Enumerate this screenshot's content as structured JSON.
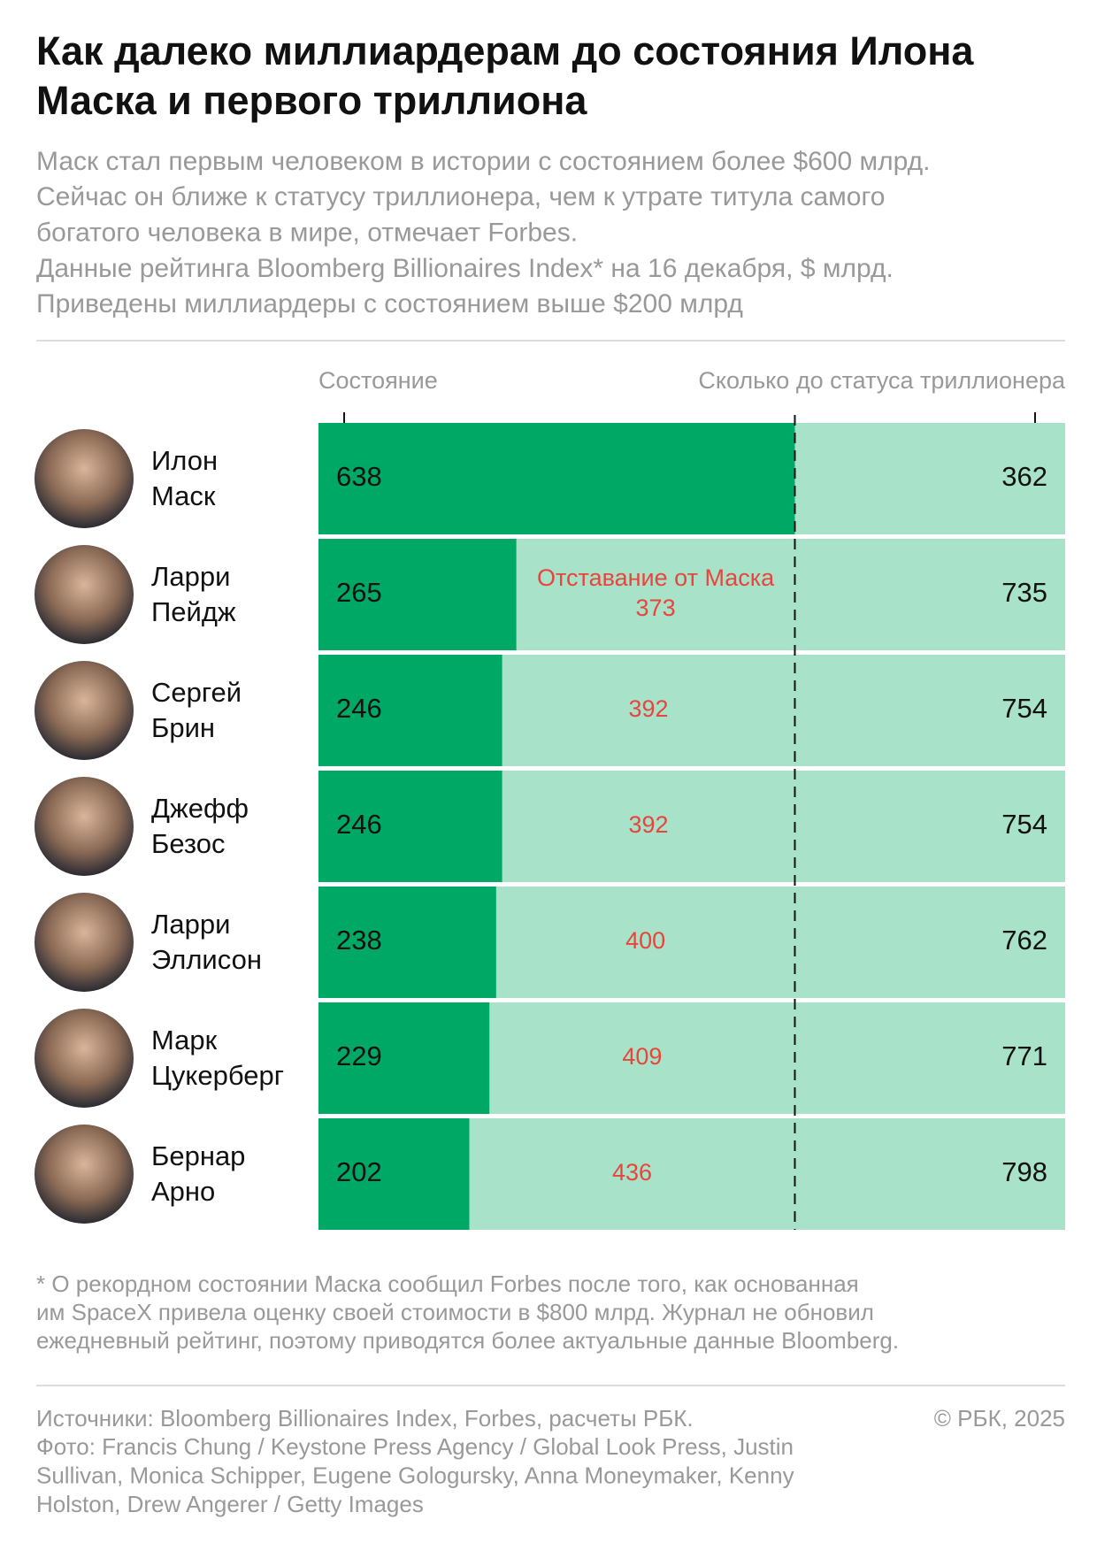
{
  "chart_data": {
    "type": "bar",
    "title": [
      "Как далеко миллиардерам до состояния Илона",
      "Маска и первого триллиона"
    ],
    "subtitle": [
      "Маск стал первым человеком в истории с состоянием более $600 млрд.",
      "Сейчас он ближе к статусу триллионера, чем к утрате титула самого",
      "богатого человека в мире, отмечает Forbes.",
      "Данные рейтинга Bloomberg Billionaires Index* на 16 декабря, $ млрд.",
      "Приведены миллиардеры с состоянием выше $200 млрд"
    ],
    "categories": [
      "Илон Маск",
      "Ларри Пейдж",
      "Сергей Брин",
      "Джефф Безос",
      "Ларри Эллисон",
      "Марк Цукерберг",
      "Бернар Арно"
    ],
    "xlim": [
      0,
      1000
    ],
    "series": [
      {
        "name": "Состояние",
        "color": "#00a865",
        "values": [
          638,
          265,
          246,
          246,
          238,
          229,
          202
        ]
      },
      {
        "name": "Отставание от Маска",
        "color": "#e8453c",
        "values": [
          null,
          373,
          392,
          392,
          400,
          409,
          436
        ]
      },
      {
        "name": "Сколько до статуса триллионера",
        "color": "#a8e2c8",
        "values": [
          362,
          735,
          754,
          754,
          762,
          771,
          798
        ]
      }
    ],
    "footnote": [
      "* О рекордном состоянии Маска сообщил Forbes после того, как основанная",
      "им SpaceX привела оценку своей стоимости в $800 млрд. Журнал не обновил",
      "ежедневный рейтинг, поэтому приводятся более актуальные данные Bloomberg."
    ],
    "sources": [
      "Источники: Bloomberg Billionaires Index, Forbes, расчеты РБК.",
      "Фото: Francis Chung / Keystone Press Agency / Global Look Press, Justin",
      "Sullivan, Monica Schipper, Eugene Gologursky, Anna Moneymaker, Kenny",
      "Holston, Drew Angerer / Getty Images"
    ],
    "copyright": "© РБК, 2025"
  }
}
